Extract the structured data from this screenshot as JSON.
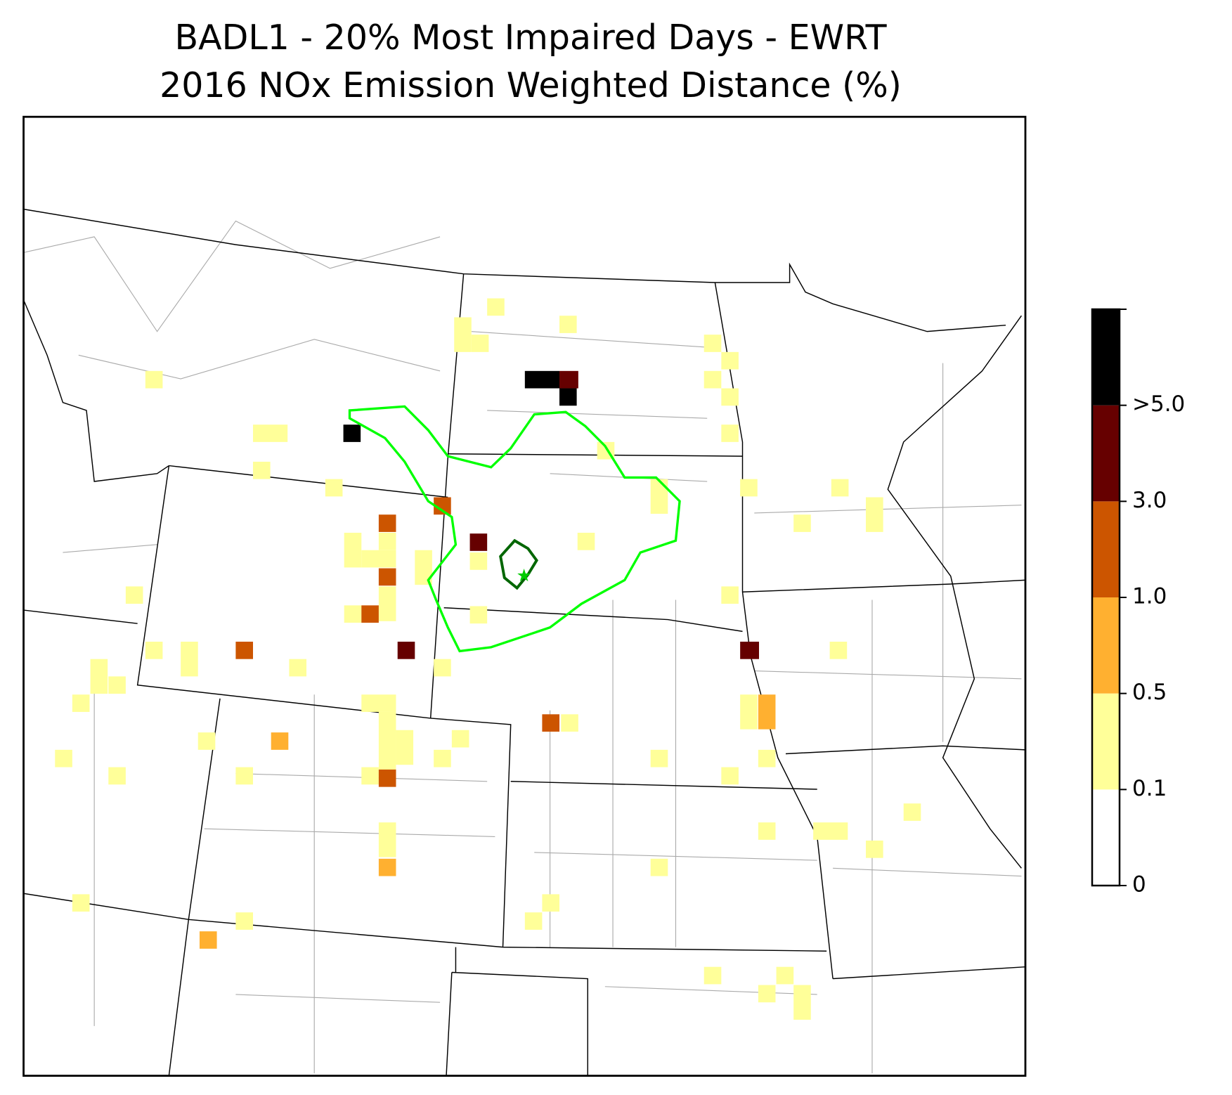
{
  "title_lines": [
    "BADL1 - 20% Most Impaired Days - EWRT",
    "2016 NOx Emission Weighted Distance (%)"
  ],
  "colorbar": {
    "ticks": [
      0,
      0.1,
      0.5,
      {
        "value": 1,
        "label": "1.0"
      },
      {
        "value": 3,
        "label": "3.0"
      },
      {
        "value": 5,
        "label": ">5.0"
      }
    ],
    "colors": [
      "#ffffff",
      "#ffff99",
      "#ffb030",
      "#cc5500",
      "#660000",
      "#000000"
    ]
  }
}
